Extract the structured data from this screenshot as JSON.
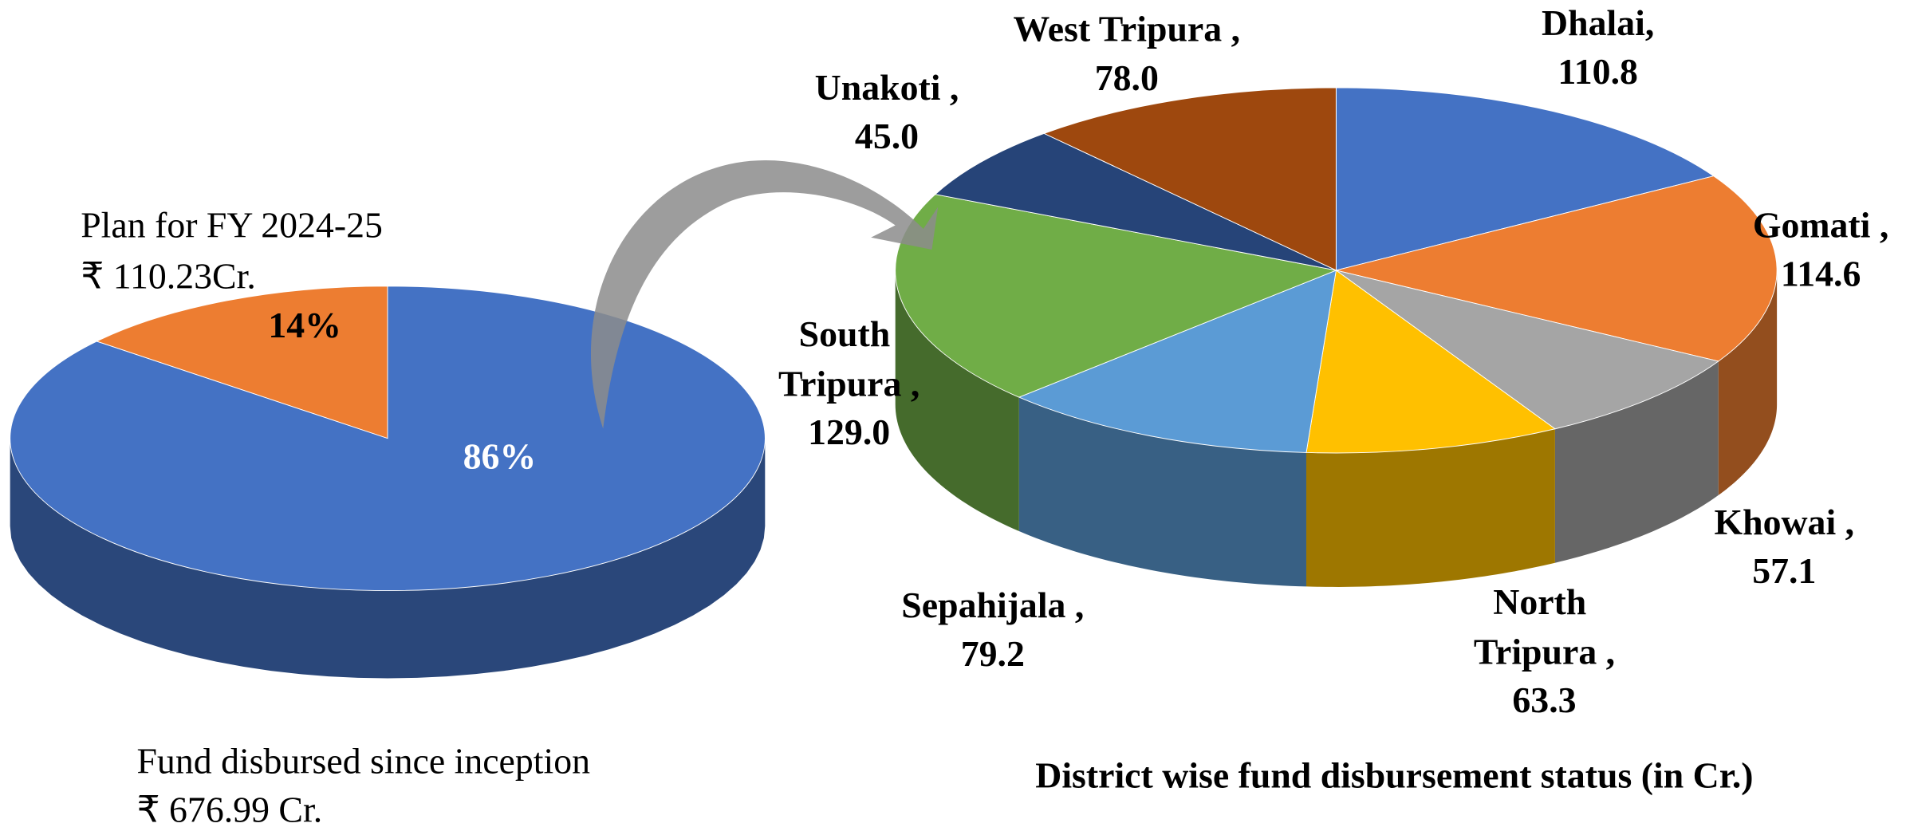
{
  "chart_data": [
    {
      "type": "pie3d",
      "annotations": [
        "Plan for FY 2024-25",
        "₹ 110.23Cr.",
        "Fund disbursed since inception",
        "₹ 676.99 Cr."
      ],
      "values": [
        14,
        86
      ],
      "value_labels": [
        "14%",
        "86%"
      ],
      "colors": [
        "#ed7d31",
        "#4472c4"
      ]
    },
    {
      "type": "pie3d",
      "title": "District wise fund disbursement status (in Cr.)",
      "categories": [
        "Dhalai,",
        "Gomati ,",
        "Khowai ,",
        "North Tripura ,",
        "Sepahijala ,",
        "South Tripura ,",
        "Unakoti ,",
        "West Tripura ,"
      ],
      "values": [
        110.8,
        114.6,
        57.1,
        63.3,
        79.2,
        129.0,
        45.0,
        78.0
      ],
      "value_labels": [
        "110.8",
        "114.6",
        "57.1",
        "63.3",
        "79.2",
        "129.0",
        "45.0",
        "78.0"
      ],
      "colors": [
        "#4472c4",
        "#ed7d31",
        "#a5a5a5",
        "#ffc000",
        "#5b9bd5",
        "#70ad47",
        "#264478",
        "#9e480e"
      ]
    }
  ]
}
